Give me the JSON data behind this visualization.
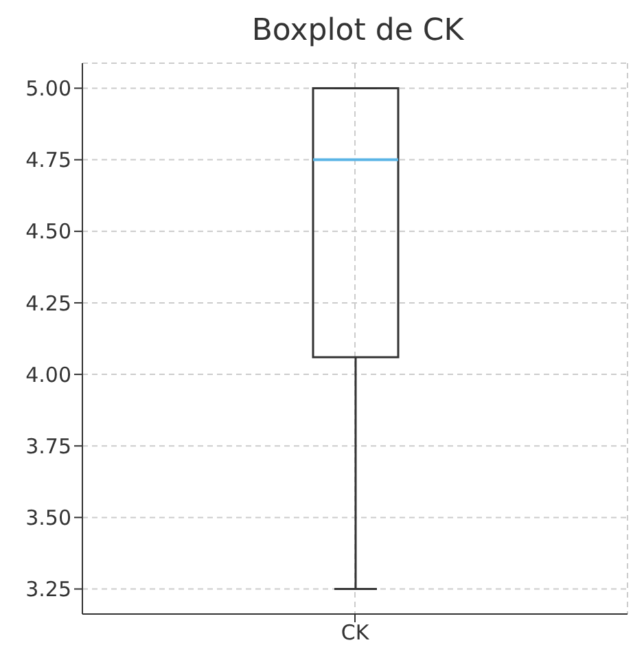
{
  "chart_data": {
    "type": "box",
    "title": "Boxplot de CK",
    "categories": [
      "CK"
    ],
    "series": [
      {
        "color": "#333333",
        "boxes": [
          {
            "low": 3.25,
            "q1": 4.06,
            "median": 4.75,
            "q3": 5.0,
            "high": 5.0
          }
        ]
      }
    ],
    "ylim": [
      3.1625,
      5.0875
    ],
    "yticks": [
      {
        "value": 3.25,
        "label": "3.25"
      },
      {
        "value": 3.5,
        "label": "3.50"
      },
      {
        "value": 3.75,
        "label": "3.75"
      },
      {
        "value": 4.0,
        "label": "4.00"
      },
      {
        "value": 4.25,
        "label": "4.25"
      },
      {
        "value": 4.5,
        "label": "4.50"
      },
      {
        "value": 4.75,
        "label": "4.75"
      },
      {
        "value": 5.0,
        "label": "5.00"
      }
    ],
    "grid": true
  }
}
